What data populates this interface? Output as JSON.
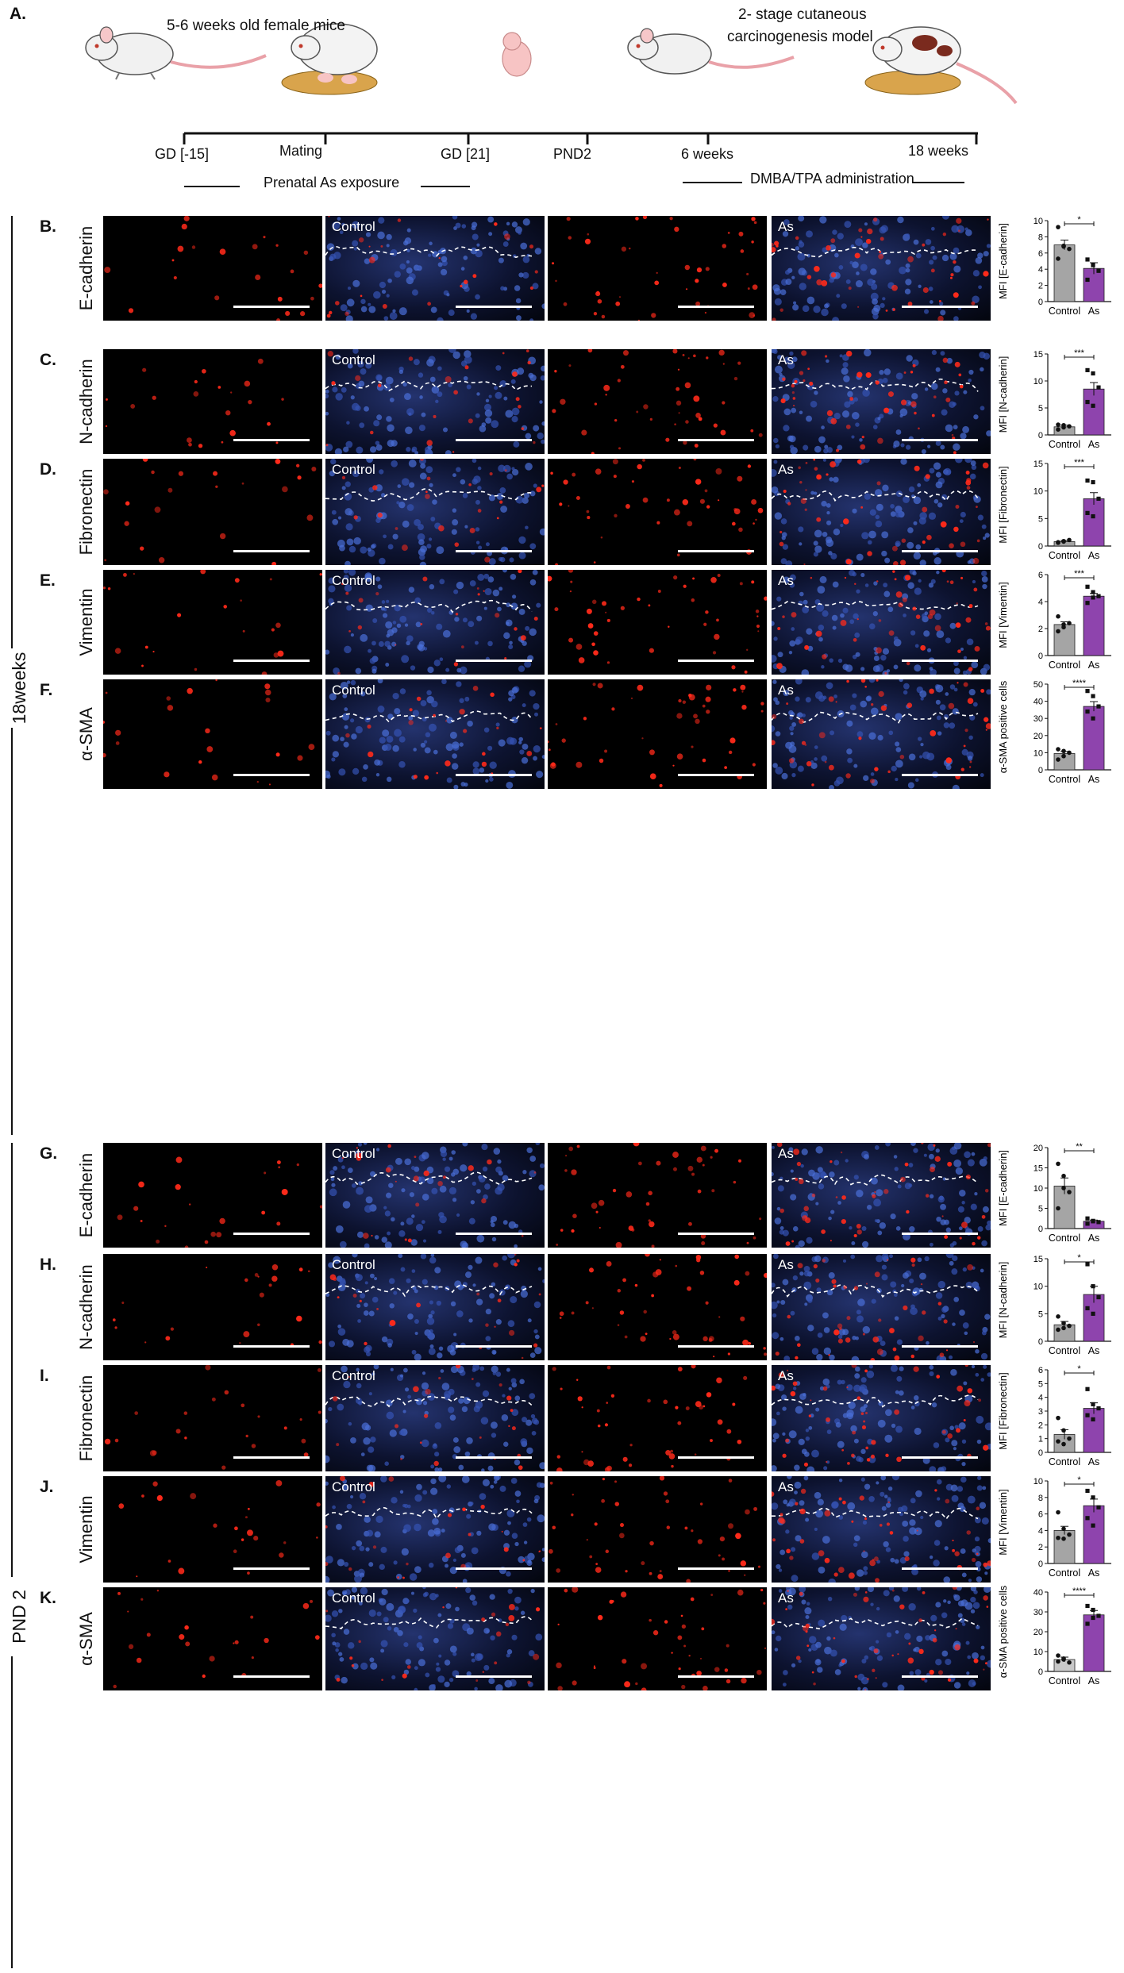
{
  "panel_a": {
    "letter": "A.",
    "mice_label": "5-6 weeks old female mice",
    "model_label_1": "2- stage cutaneous",
    "model_label_2": "carcinogenesis model",
    "timeline": [
      "GD [-15]",
      "Mating",
      "GD [21]",
      "PND2",
      "6 weeks",
      "18 weeks"
    ],
    "prenatal": "Prenatal As exposure",
    "dmba": "DMBA/TPA administration"
  },
  "groups": [
    "18weeks",
    "PND 2"
  ],
  "image_labels": {
    "control": "Control",
    "as": "As"
  },
  "rows": [
    {
      "letter": "B.",
      "marker": "E-cadherin"
    },
    {
      "letter": "C.",
      "marker": "N-cadherin"
    },
    {
      "letter": "D.",
      "marker": "Fibronectin"
    },
    {
      "letter": "E.",
      "marker": "Vimentin"
    },
    {
      "letter": "F.",
      "marker": "α-SMA"
    },
    {
      "letter": "G.",
      "marker": "E-cadherin"
    },
    {
      "letter": "H.",
      "marker": "N-cadherin"
    },
    {
      "letter": "I.",
      "marker": "Fibronectin"
    },
    {
      "letter": "J.",
      "marker": "Vimentin"
    },
    {
      "letter": "K.",
      "marker": "α-SMA"
    }
  ],
  "chart_data": [
    {
      "type": "bar",
      "categories": [
        "Control",
        "As"
      ],
      "ylabel": "MFI [E-cadherin]",
      "ylim": [
        0,
        10
      ],
      "ticks": [
        0,
        2,
        4,
        6,
        8,
        10
      ],
      "values": [
        7.0,
        4.1
      ],
      "errors": [
        0.6,
        0.7
      ],
      "significance": "*",
      "points": [
        [
          9.2,
          6.8,
          6.5,
          5.3,
          6.9
        ],
        [
          5.2,
          4.5,
          3.8,
          2.7
        ]
      ]
    },
    {
      "type": "bar",
      "categories": [
        "Control",
        "As"
      ],
      "ylabel": "MFI [N-cadherin]",
      "ylim": [
        0,
        15
      ],
      "ticks": [
        0,
        5,
        10,
        15
      ],
      "values": [
        1.5,
        8.5
      ],
      "errors": [
        0.3,
        1.2
      ],
      "significance": "***",
      "points": [
        [
          1.0,
          1.4,
          1.6,
          1.9,
          1.8
        ],
        [
          12.0,
          11.4,
          8.8,
          6.1,
          5.4
        ]
      ]
    },
    {
      "type": "bar",
      "categories": [
        "Control",
        "As"
      ],
      "ylabel": "MFI [Fibronectin]",
      "ylim": [
        0,
        15
      ],
      "ticks": [
        0,
        5,
        10,
        15
      ],
      "values": [
        0.8,
        8.6
      ],
      "errors": [
        0.2,
        1.1
      ],
      "significance": "***",
      "points": [
        [
          0.6,
          0.9,
          1.1,
          0.7,
          0.8
        ],
        [
          11.9,
          11.6,
          8.6,
          6.0,
          5.4
        ]
      ]
    },
    {
      "type": "bar",
      "categories": [
        "Control",
        "As"
      ],
      "ylabel": "MFI [Vimentin]",
      "ylim": [
        0,
        6
      ],
      "ticks": [
        0,
        2,
        4,
        6
      ],
      "values": [
        2.3,
        4.4
      ],
      "errors": [
        0.2,
        0.2
      ],
      "significance": "***",
      "points": [
        [
          2.9,
          2.3,
          2.4,
          1.8,
          2.1
        ],
        [
          5.1,
          4.7,
          4.4,
          3.9,
          4.3
        ]
      ]
    },
    {
      "type": "bar",
      "categories": [
        "Control",
        "As"
      ],
      "ylabel": "α-SMA positive cells",
      "ylim": [
        0,
        50
      ],
      "ticks": [
        0,
        10,
        20,
        30,
        40,
        50
      ],
      "values": [
        9.5,
        37
      ],
      "errors": [
        1.2,
        2.8
      ],
      "significance": "****",
      "points": [
        [
          12,
          8,
          10,
          6,
          11
        ],
        [
          46,
          43,
          37,
          34,
          30
        ]
      ]
    },
    {
      "type": "bar",
      "categories": [
        "Control",
        "As"
      ],
      "ylabel": "MFI [E-cadherin]",
      "ylim": [
        0,
        20
      ],
      "ticks": [
        0,
        5,
        10,
        15,
        20
      ],
      "values": [
        10.5,
        1.8
      ],
      "errors": [
        2.0,
        0.3
      ],
      "significance": "**",
      "points": [
        [
          16,
          10,
          9,
          5,
          13
        ],
        [
          2.5,
          1.9,
          1.6,
          1.2,
          1.8
        ]
      ]
    },
    {
      "type": "bar",
      "categories": [
        "Control",
        "As"
      ],
      "ylabel": "MFI [N-cadherin]",
      "ylim": [
        0,
        15
      ],
      "ticks": [
        0,
        5,
        10,
        15
      ],
      "values": [
        3.0,
        8.5
      ],
      "errors": [
        0.6,
        1.5
      ],
      "significance": "*",
      "points": [
        [
          4.5,
          3.3,
          2.8,
          2.1,
          2.4
        ],
        [
          14,
          10,
          8,
          6,
          5
        ]
      ]
    },
    {
      "type": "bar",
      "categories": [
        "Control",
        "As"
      ],
      "ylabel": "MFI [Fibronectin]",
      "ylim": [
        0,
        6
      ],
      "ticks": [
        0,
        1,
        2,
        3,
        4,
        5,
        6
      ],
      "values": [
        1.3,
        3.2
      ],
      "errors": [
        0.35,
        0.4
      ],
      "significance": "*",
      "points": [
        [
          2.5,
          1.6,
          1.0,
          0.8,
          0.6
        ],
        [
          4.6,
          3.5,
          3.2,
          2.7,
          2.4
        ]
      ]
    },
    {
      "type": "bar",
      "categories": [
        "Control",
        "As"
      ],
      "ylabel": "MFI [Vimentin]",
      "ylim": [
        0,
        10
      ],
      "ticks": [
        0,
        2,
        4,
        6,
        8,
        10
      ],
      "values": [
        4.0,
        7.0
      ],
      "errors": [
        0.5,
        0.8
      ],
      "significance": "*",
      "points": [
        [
          6.2,
          4.2,
          3.5,
          3.1,
          3.0
        ],
        [
          8.8,
          8.0,
          6.8,
          5.5,
          4.6
        ]
      ]
    },
    {
      "type": "bar",
      "categories": [
        "Control",
        "As"
      ],
      "ylabel": "α-SMA positive cells",
      "ylim": [
        0,
        40
      ],
      "ticks": [
        0,
        10,
        20,
        30,
        40
      ],
      "values": [
        6,
        28.5
      ],
      "errors": [
        1.2,
        2.2
      ],
      "significance": "****",
      "points": [
        [
          8,
          6,
          4.5,
          5,
          6.5
        ],
        [
          33,
          31,
          28,
          24,
          27
        ]
      ]
    }
  ]
}
